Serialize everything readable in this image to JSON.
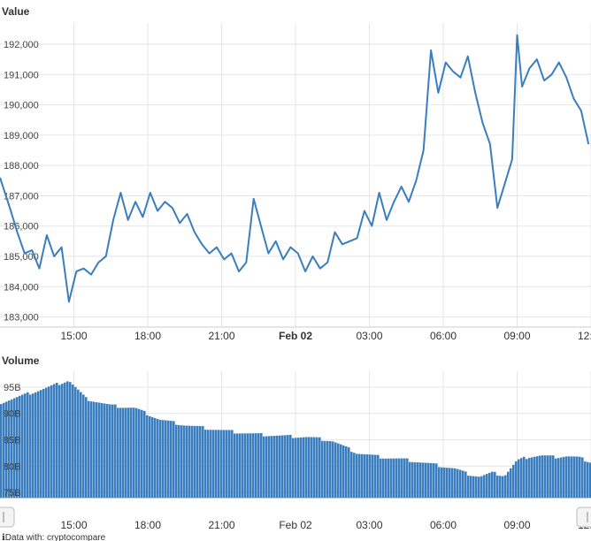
{
  "chart_data": [
    {
      "type": "line",
      "title": "Value",
      "ylim": [
        182900,
        192700
      ],
      "yticks": [
        "183,000",
        "184,000",
        "185,000",
        "186,000",
        "187,000",
        "188,000",
        "189,000",
        "190,000",
        "191,000",
        "192,000"
      ],
      "ytick_values": [
        183000,
        184000,
        185000,
        186000,
        187000,
        188000,
        189000,
        190000,
        191000,
        192000
      ],
      "xticks": [
        {
          "label": "15:00",
          "hour": 15,
          "major": false
        },
        {
          "label": "18:00",
          "hour": 18,
          "major": false
        },
        {
          "label": "21:00",
          "hour": 21,
          "major": false
        },
        {
          "label": "Feb 02",
          "hour": 24,
          "major": true
        },
        {
          "label": "03:00",
          "hour": 27,
          "major": false
        },
        {
          "label": "06:00",
          "hour": 30,
          "major": false
        },
        {
          "label": "09:00",
          "hour": 33,
          "major": false
        },
        {
          "label": "12:00",
          "hour": 36,
          "major": false
        }
      ],
      "x_hours": [
        12.0,
        12.4,
        12.7,
        13.0,
        13.3,
        13.6,
        13.9,
        14.2,
        14.5,
        14.8,
        15.1,
        15.4,
        15.7,
        16.0,
        16.3,
        16.6,
        16.9,
        17.2,
        17.5,
        17.8,
        18.1,
        18.4,
        18.7,
        19.0,
        19.3,
        19.6,
        19.9,
        20.2,
        20.5,
        20.8,
        21.1,
        21.4,
        21.7,
        22.0,
        22.3,
        22.6,
        22.9,
        23.2,
        23.5,
        23.8,
        24.1,
        24.4,
        24.7,
        25.0,
        25.3,
        25.6,
        25.9,
        26.2,
        26.5,
        26.8,
        27.1,
        27.4,
        27.7,
        28.0,
        28.3,
        28.6,
        28.9,
        29.2,
        29.5,
        29.8,
        30.1,
        30.4,
        30.7,
        31.0,
        31.3,
        31.6,
        31.9,
        32.2,
        32.5,
        32.8,
        33.0,
        33.2,
        33.5,
        33.8,
        34.1,
        34.4,
        34.7,
        35.0,
        35.3,
        35.6,
        35.9
      ],
      "values": [
        187600,
        186600,
        185800,
        185100,
        185200,
        184600,
        185700,
        185000,
        185300,
        183500,
        184500,
        184600,
        184400,
        184800,
        185000,
        186200,
        187100,
        186200,
        186800,
        186300,
        187100,
        186500,
        186800,
        186600,
        186100,
        186400,
        185800,
        185400,
        185100,
        185300,
        184900,
        185100,
        184500,
        184800,
        186900,
        186000,
        185100,
        185500,
        184900,
        185300,
        185100,
        184500,
        185000,
        184600,
        184800,
        185800,
        185400,
        185500,
        185600,
        186500,
        186000,
        187100,
        186200,
        186800,
        187300,
        186800,
        187500,
        188500,
        191800,
        190400,
        191400,
        191100,
        190900,
        191600,
        190400,
        189400,
        188700,
        186600,
        187400,
        188200,
        192300,
        190600,
        191200,
        191500,
        190800,
        191000,
        191400,
        190900,
        190200,
        189800,
        188700
      ],
      "series": [
        {
          "values_ref": "values"
        }
      ],
      "grid": true
    },
    {
      "type": "area",
      "title": "Volume",
      "ylim": [
        74000,
        98000
      ],
      "yticks": [
        "75B",
        "80B",
        "85B",
        "90B",
        "95B"
      ],
      "ytick_values": [
        75000,
        80000,
        85000,
        90000,
        95000
      ],
      "x_hours": [
        12.0,
        13.0,
        14.0,
        14.8,
        15.5,
        16.5,
        17.5,
        18.5,
        19.5,
        20.5,
        21.5,
        22.5,
        23.5,
        24.5,
        25.5,
        26.5,
        27.5,
        28.5,
        29.5,
        30.5,
        31.0,
        31.5,
        32.0,
        32.5,
        33.0,
        33.5,
        34.0,
        34.5,
        35.0,
        35.5,
        36.0
      ],
      "values": [
        92000,
        93500,
        95000,
        96300,
        92800,
        91500,
        91000,
        88800,
        87800,
        87100,
        86500,
        86000,
        85700,
        85500,
        84800,
        82500,
        81700,
        81200,
        80400,
        79500,
        78500,
        78000,
        78700,
        78200,
        81000,
        81800,
        82000,
        81700,
        81900,
        81600,
        80800
      ],
      "xticks": [
        "15:00",
        "18:00",
        "21:00",
        "Feb 02",
        "03:00",
        "06:00",
        "09:00",
        "12:00"
      ],
      "color": "#3a7ebf"
    }
  ],
  "footer": "ℹData with: cryptocompare"
}
